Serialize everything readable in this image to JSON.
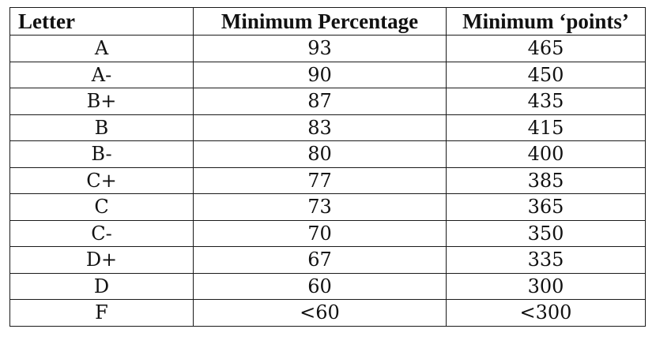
{
  "table": {
    "headers": [
      "Letter",
      "Minimum Percentage",
      "Minimum ‘points’"
    ],
    "rows": [
      [
        "A",
        "93",
        "465"
      ],
      [
        "A-",
        "90",
        "450"
      ],
      [
        "B+",
        "87",
        "435"
      ],
      [
        "B",
        "83",
        "415"
      ],
      [
        "B-",
        "80",
        "400"
      ],
      [
        "C+",
        "77",
        "385"
      ],
      [
        "C",
        "73",
        "365"
      ],
      [
        "C-",
        "70",
        "350"
      ],
      [
        "D+",
        "67",
        "335"
      ],
      [
        "D",
        "60",
        "300"
      ],
      [
        "F",
        "<60",
        "<300"
      ]
    ]
  }
}
